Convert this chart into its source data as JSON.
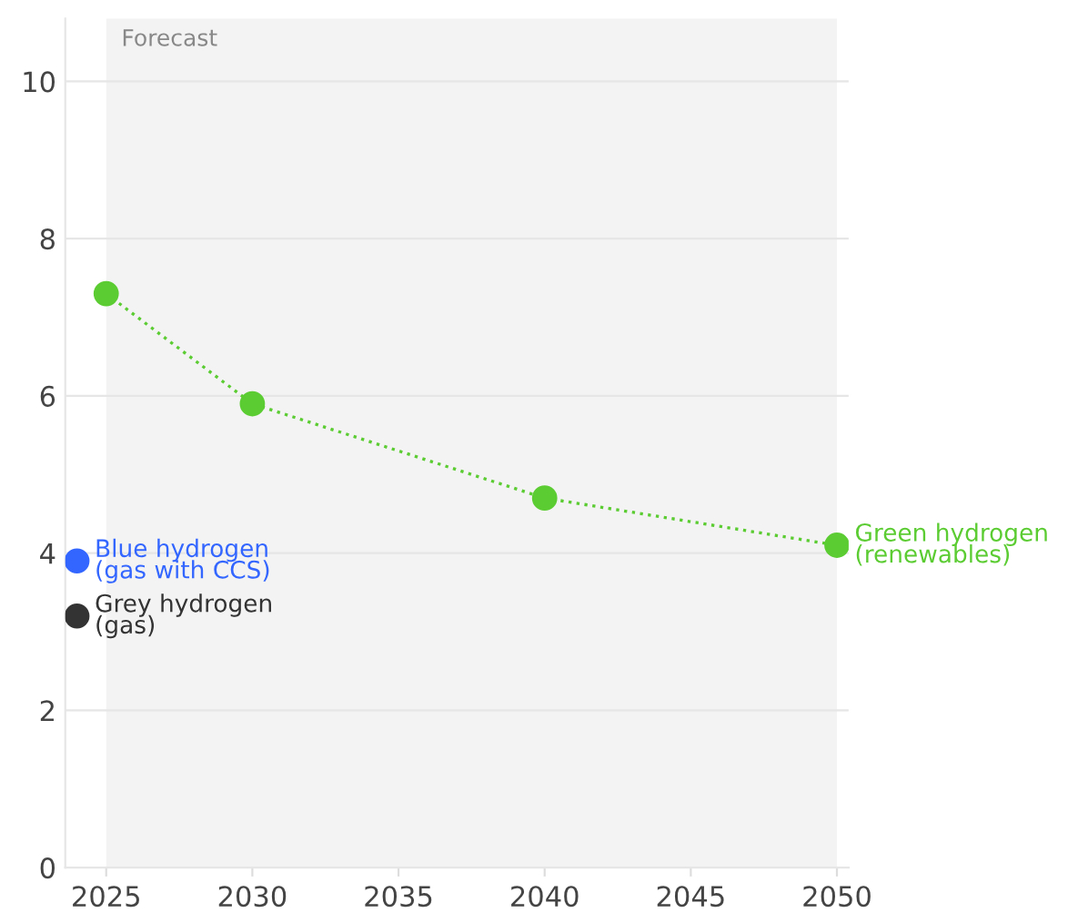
{
  "chart_data": {
    "type": "line",
    "series": [
      {
        "name": "Green hydrogen\n(renewables)",
        "color": "#5ccc33",
        "x": [
          2025,
          2030,
          2040,
          2050
        ],
        "values": [
          7.3,
          5.9,
          4.7,
          4.1
        ],
        "marker": "circle",
        "line_style": "dotted"
      },
      {
        "name": "Blue hydrogen\n(gas with CCS)",
        "color": "#3366ff",
        "type": "scatter",
        "x": [
          2024
        ],
        "values": [
          3.9
        ],
        "marker": "circle"
      },
      {
        "name": "Grey hydrogen\n(gas)",
        "color": "#333333",
        "type": "scatter",
        "x": [
          2024
        ],
        "values": [
          3.2
        ],
        "marker": "circle"
      }
    ],
    "xlim": [
      2023.6,
      2050.4
    ],
    "xticks": [
      2025,
      2030,
      2035,
      2040,
      2045,
      2050
    ],
    "ylim": [
      0,
      10.8
    ],
    "yticks": [
      0,
      2,
      4,
      6,
      8,
      10
    ],
    "bands": [
      {
        "axis": "x",
        "from": 2025,
        "to": 2050,
        "label": "Forecast",
        "color": "#f3f3f3"
      }
    ],
    "grid": "y"
  }
}
